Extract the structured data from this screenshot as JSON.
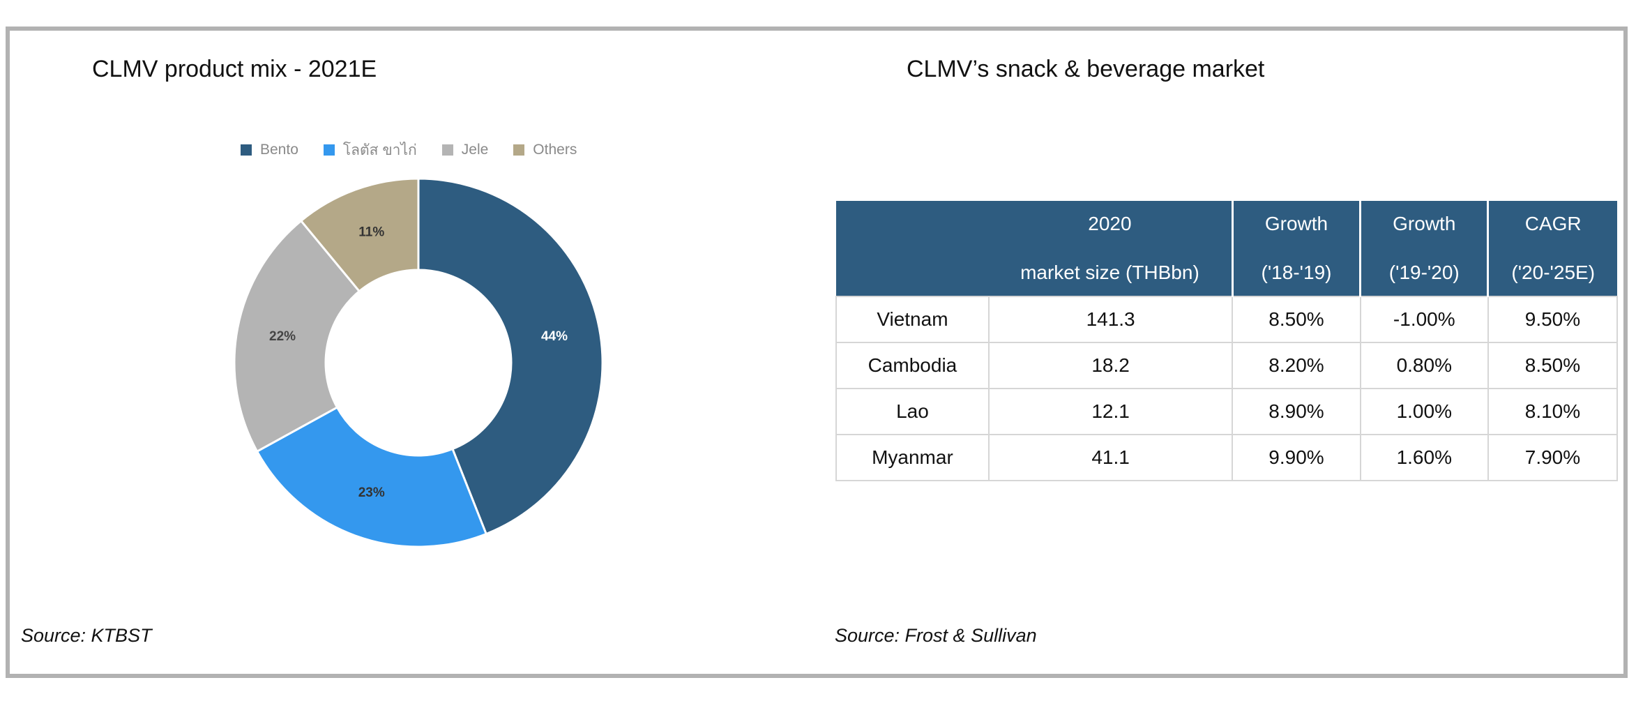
{
  "left_panel": {
    "title": "CLMV product mix - 2021E",
    "source": "Source: KTBST"
  },
  "right_panel": {
    "title": "CLMV’s snack & beverage market",
    "source": "Source:   Frost & Sullivan"
  },
  "colors": {
    "bento": "#2e5c80",
    "lotus": "#3498ee",
    "jele": "#b4b4b4",
    "others": "#b4a888",
    "header_bg": "#2e5c80"
  },
  "chart_data": [
    {
      "type": "pie",
      "donut": true,
      "legend_position": "top",
      "categories": [
        "Bento",
        "โลตัส ขาไก่",
        "Jele",
        "Others"
      ],
      "values": [
        44,
        23,
        22,
        11
      ],
      "labels": [
        "44%",
        "23%",
        "22%",
        "11%"
      ]
    },
    {
      "type": "table",
      "headers": [
        {
          "line1": "",
          "line2": ""
        },
        {
          "line1": "2020",
          "line2": "market size (THBbn)"
        },
        {
          "line1": "Growth",
          "line2": "('18-'19)"
        },
        {
          "line1": "Growth",
          "line2": "('19-'20)"
        },
        {
          "line1": "CAGR",
          "line2": "('20-'25E)"
        }
      ],
      "rows": [
        [
          "Vietnam",
          "141.3",
          "8.50%",
          "-1.00%",
          "9.50%"
        ],
        [
          "Cambodia",
          "18.2",
          "8.20%",
          "0.80%",
          "8.50%"
        ],
        [
          "Lao",
          "12.1",
          "8.90%",
          "1.00%",
          "8.10%"
        ],
        [
          "Myanmar",
          "41.1",
          "9.90%",
          "1.60%",
          "7.90%"
        ]
      ]
    }
  ]
}
